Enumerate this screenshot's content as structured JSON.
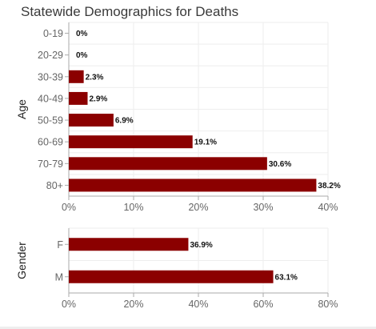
{
  "title": "Statewide Demographics for Deaths",
  "colors": {
    "bar": "#8b0000",
    "grid": "#eeeeee",
    "axis": "#aaaaaa"
  },
  "chart_data": [
    {
      "type": "bar",
      "orientation": "horizontal",
      "ylabel": "Age",
      "categories": [
        "0-19",
        "20-29",
        "30-39",
        "40-49",
        "50-59",
        "60-69",
        "70-79",
        "80+"
      ],
      "values": [
        0,
        0,
        2.3,
        2.9,
        6.9,
        19.1,
        30.6,
        38.2
      ],
      "data_labels": [
        "0%",
        "0%",
        "2.3%",
        "2.9%",
        "6.9%",
        "19.1%",
        "30.6%",
        "38.2%"
      ],
      "xlim": [
        0,
        40
      ],
      "xticks": [
        "0%",
        "10%",
        "20%",
        "30%",
        "40%"
      ],
      "grid": true
    },
    {
      "type": "bar",
      "orientation": "horizontal",
      "ylabel": "Gender",
      "categories": [
        "F",
        "M"
      ],
      "values": [
        36.9,
        63.1
      ],
      "data_labels": [
        "36.9%",
        "63.1%"
      ],
      "xlim": [
        0,
        80
      ],
      "xticks": [
        "0%",
        "20%",
        "40%",
        "60%",
        "80%"
      ],
      "grid": true
    }
  ]
}
